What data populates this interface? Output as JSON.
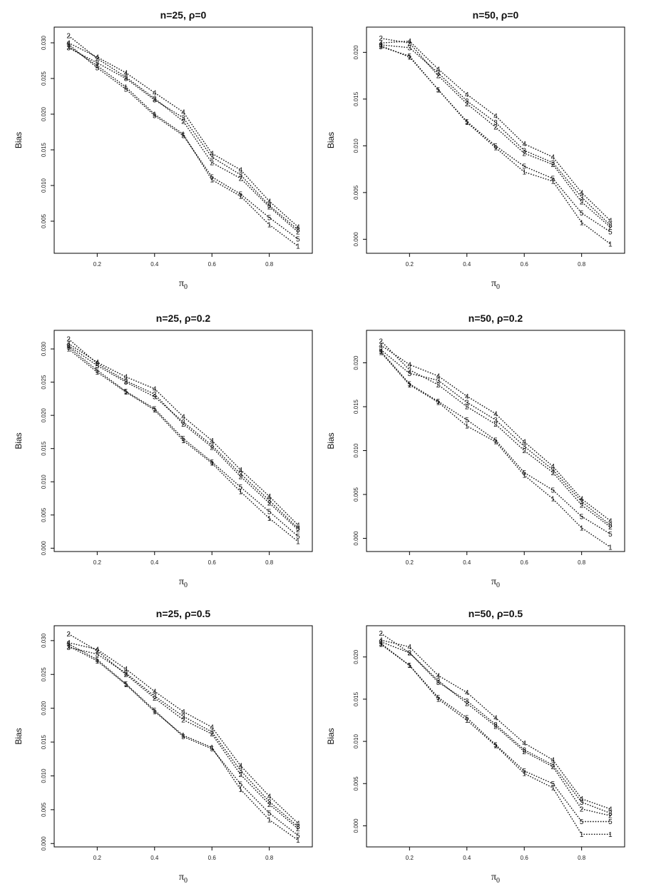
{
  "chart_data": [
    {
      "type": "line",
      "title": "n=25, ρ=0",
      "xlabel": "π",
      "xlabel_sub": "0",
      "ylabel": "Bias",
      "xlim": [
        0.05,
        0.95
      ],
      "ylim": [
        0.0005,
        0.0322
      ],
      "xticks": [
        0.2,
        0.4,
        0.6,
        0.8
      ],
      "xtick_labels": [
        "0.2",
        "0.4",
        "0.6",
        "0.8"
      ],
      "yticks": [
        0.005,
        0.01,
        0.015,
        0.02,
        0.025,
        0.03
      ],
      "ytick_labels": [
        "0.005",
        "0.010",
        "0.015",
        "0.020",
        "0.025",
        "0.030"
      ],
      "x": [
        0.1,
        0.2,
        0.3,
        0.4,
        0.5,
        0.6,
        0.7,
        0.8,
        0.9
      ],
      "series": [
        {
          "name": "1",
          "values": [
            0.0295,
            0.0268,
            0.0238,
            0.02,
            0.0172,
            0.0108,
            0.0085,
            0.0045,
            0.0015
          ]
        },
        {
          "name": "2",
          "values": [
            0.031,
            0.0278,
            0.0252,
            0.0222,
            0.019,
            0.0132,
            0.011,
            0.007,
            0.0035
          ]
        },
        {
          "name": "3",
          "values": [
            0.0293,
            0.0272,
            0.025,
            0.022,
            0.0195,
            0.014,
            0.0115,
            0.0072,
            0.0038
          ]
        },
        {
          "name": "4",
          "values": [
            0.03,
            0.028,
            0.0258,
            0.023,
            0.0203,
            0.0145,
            0.0122,
            0.0078,
            0.0042
          ]
        },
        {
          "name": "5",
          "values": [
            0.0298,
            0.0265,
            0.0235,
            0.0198,
            0.017,
            0.0112,
            0.0088,
            0.0055,
            0.0025
          ]
        }
      ]
    },
    {
      "type": "line",
      "title": "n=50, ρ=0",
      "xlabel": "π",
      "xlabel_sub": "0",
      "ylabel": "Bias",
      "xlim": [
        0.05,
        0.95
      ],
      "ylim": [
        -0.0015,
        0.0227
      ],
      "xticks": [
        0.2,
        0.4,
        0.6,
        0.8
      ],
      "xtick_labels": [
        "0.2",
        "0.4",
        "0.6",
        "0.8"
      ],
      "yticks": [
        0,
        0.005,
        0.01,
        0.015,
        0.02
      ],
      "ytick_labels": [
        "0.000",
        "0.005",
        "0.010",
        "0.015",
        "0.020"
      ],
      "x": [
        0.1,
        0.2,
        0.3,
        0.4,
        0.5,
        0.6,
        0.7,
        0.8,
        0.9
      ],
      "series": [
        {
          "name": "1",
          "values": [
            0.0207,
            0.0195,
            0.016,
            0.0125,
            0.0098,
            0.0072,
            0.0062,
            0.0018,
            -0.0005
          ]
        },
        {
          "name": "2",
          "values": [
            0.0215,
            0.021,
            0.0175,
            0.0145,
            0.012,
            0.0092,
            0.008,
            0.004,
            0.0013
          ]
        },
        {
          "name": "3",
          "values": [
            0.0208,
            0.0205,
            0.0178,
            0.0148,
            0.0125,
            0.0095,
            0.0082,
            0.0045,
            0.0015
          ]
        },
        {
          "name": "4",
          "values": [
            0.021,
            0.0212,
            0.0182,
            0.0155,
            0.0132,
            0.0102,
            0.0088,
            0.005,
            0.002
          ]
        },
        {
          "name": "5",
          "values": [
            0.0206,
            0.0196,
            0.016,
            0.0126,
            0.01,
            0.0078,
            0.0065,
            0.0028,
            0.0008
          ]
        }
      ]
    },
    {
      "type": "line",
      "title": "n=25, ρ=0.2",
      "xlabel": "π",
      "xlabel_sub": "0",
      "ylabel": "Bias",
      "xlim": [
        0.05,
        0.95
      ],
      "ylim": [
        -0.0005,
        0.0328
      ],
      "xticks": [
        0.2,
        0.4,
        0.6,
        0.8
      ],
      "xtick_labels": [
        "0.2",
        "0.4",
        "0.6",
        "0.8"
      ],
      "yticks": [
        0,
        0.005,
        0.01,
        0.015,
        0.02,
        0.025,
        0.03
      ],
      "ytick_labels": [
        "0.000",
        "0.005",
        "0.010",
        "0.015",
        "0.020",
        "0.025",
        "0.030"
      ],
      "x": [
        0.1,
        0.2,
        0.3,
        0.4,
        0.5,
        0.6,
        0.7,
        0.8,
        0.9
      ],
      "series": [
        {
          "name": "1",
          "values": [
            0.03,
            0.0265,
            0.0235,
            0.0208,
            0.0162,
            0.0128,
            0.0085,
            0.0045,
            0.001
          ]
        },
        {
          "name": "2",
          "values": [
            0.0315,
            0.0278,
            0.0252,
            0.0232,
            0.0187,
            0.0152,
            0.0108,
            0.0068,
            0.0028
          ]
        },
        {
          "name": "3",
          "values": [
            0.0305,
            0.0275,
            0.025,
            0.0228,
            0.019,
            0.0155,
            0.0112,
            0.0072,
            0.003
          ]
        },
        {
          "name": "4",
          "values": [
            0.0308,
            0.028,
            0.0258,
            0.024,
            0.0198,
            0.0162,
            0.0118,
            0.0078,
            0.0035
          ]
        },
        {
          "name": "5",
          "values": [
            0.0303,
            0.0268,
            0.0236,
            0.021,
            0.0165,
            0.013,
            0.0092,
            0.0055,
            0.0018
          ]
        }
      ]
    },
    {
      "type": "line",
      "title": "n=50, ρ=0.2",
      "xlabel": "π",
      "xlabel_sub": "0",
      "ylabel": "Bias",
      "xlim": [
        0.05,
        0.95
      ],
      "ylim": [
        -0.0015,
        0.0237
      ],
      "xticks": [
        0.2,
        0.4,
        0.6,
        0.8
      ],
      "xtick_labels": [
        "0.2",
        "0.4",
        "0.6",
        "0.8"
      ],
      "yticks": [
        0,
        0.005,
        0.01,
        0.015,
        0.02
      ],
      "ytick_labels": [
        "0.000",
        "0.005",
        "0.010",
        "0.015",
        "0.020"
      ],
      "x": [
        0.1,
        0.2,
        0.3,
        0.4,
        0.5,
        0.6,
        0.7,
        0.8,
        0.9
      ],
      "series": [
        {
          "name": "1",
          "values": [
            0.0212,
            0.0175,
            0.0155,
            0.0128,
            0.011,
            0.0072,
            0.0045,
            0.0012,
            -0.001
          ]
        },
        {
          "name": "2",
          "values": [
            0.0225,
            0.0192,
            0.0175,
            0.015,
            0.013,
            0.01,
            0.0075,
            0.0038,
            0.0013
          ]
        },
        {
          "name": "3",
          "values": [
            0.0215,
            0.0188,
            0.018,
            0.0155,
            0.0135,
            0.0105,
            0.0078,
            0.0042,
            0.0015
          ]
        },
        {
          "name": "4",
          "values": [
            0.022,
            0.0198,
            0.0185,
            0.0162,
            0.0142,
            0.011,
            0.0082,
            0.0045,
            0.002
          ]
        },
        {
          "name": "5",
          "values": [
            0.0213,
            0.0176,
            0.0156,
            0.0135,
            0.0112,
            0.0075,
            0.0055,
            0.0025,
            0.0005
          ]
        }
      ]
    },
    {
      "type": "line",
      "title": "n=25, ρ=0.5",
      "xlabel": "π",
      "xlabel_sub": "0",
      "ylabel": "Bias",
      "xlim": [
        0.05,
        0.95
      ],
      "ylim": [
        -0.0005,
        0.0322
      ],
      "xticks": [
        0.2,
        0.4,
        0.6,
        0.8
      ],
      "xtick_labels": [
        "0.2",
        "0.4",
        "0.6",
        "0.8"
      ],
      "yticks": [
        0,
        0.005,
        0.01,
        0.015,
        0.02,
        0.025,
        0.03
      ],
      "ytick_labels": [
        "0.000",
        "0.005",
        "0.010",
        "0.015",
        "0.020",
        "0.025",
        "0.030"
      ],
      "x": [
        0.1,
        0.2,
        0.3,
        0.4,
        0.5,
        0.6,
        0.7,
        0.8,
        0.9
      ],
      "series": [
        {
          "name": "1",
          "values": [
            0.0292,
            0.027,
            0.0235,
            0.0195,
            0.016,
            0.0142,
            0.008,
            0.0035,
            0.0005
          ]
        },
        {
          "name": "2",
          "values": [
            0.031,
            0.0285,
            0.025,
            0.0215,
            0.0183,
            0.0162,
            0.0102,
            0.0058,
            0.0022
          ]
        },
        {
          "name": "3",
          "values": [
            0.029,
            0.028,
            0.0252,
            0.0218,
            0.0188,
            0.0165,
            0.0108,
            0.0062,
            0.0025
          ]
        },
        {
          "name": "4",
          "values": [
            0.0297,
            0.0287,
            0.0258,
            0.0225,
            0.0195,
            0.0172,
            0.0115,
            0.007,
            0.003
          ]
        },
        {
          "name": "5",
          "values": [
            0.0295,
            0.0272,
            0.0236,
            0.0197,
            0.0158,
            0.014,
            0.0088,
            0.0045,
            0.0012
          ]
        }
      ]
    },
    {
      "type": "line",
      "title": "n=50, ρ=0.5",
      "xlabel": "π",
      "xlabel_sub": "0",
      "ylabel": "Bias",
      "xlim": [
        0.05,
        0.95
      ],
      "ylim": [
        -0.0025,
        0.0237
      ],
      "xticks": [
        0.2,
        0.4,
        0.6,
        0.8
      ],
      "xtick_labels": [
        "0.2",
        "0.4",
        "0.6",
        "0.8"
      ],
      "yticks": [
        0,
        0.005,
        0.01,
        0.015,
        0.02
      ],
      "ytick_labels": [
        "0.000",
        "0.005",
        "0.010",
        "0.015",
        "0.020"
      ],
      "x": [
        0.1,
        0.2,
        0.3,
        0.4,
        0.5,
        0.6,
        0.7,
        0.8,
        0.9
      ],
      "series": [
        {
          "name": "1",
          "values": [
            0.0215,
            0.019,
            0.015,
            0.0125,
            0.0095,
            0.0062,
            0.0045,
            -0.001,
            -0.001
          ]
        },
        {
          "name": "2",
          "values": [
            0.0228,
            0.0205,
            0.0172,
            0.0145,
            0.0118,
            0.0088,
            0.007,
            0.002,
            0.0012
          ]
        },
        {
          "name": "3",
          "values": [
            0.0218,
            0.0205,
            0.017,
            0.0148,
            0.012,
            0.009,
            0.0072,
            0.0028,
            0.0015
          ]
        },
        {
          "name": "4",
          "values": [
            0.022,
            0.0212,
            0.0178,
            0.0158,
            0.0128,
            0.0098,
            0.0078,
            0.0032,
            0.002
          ]
        },
        {
          "name": "5",
          "values": [
            0.0216,
            0.019,
            0.0152,
            0.0128,
            0.0096,
            0.0065,
            0.005,
            0.0005,
            0.0005
          ]
        }
      ]
    }
  ]
}
